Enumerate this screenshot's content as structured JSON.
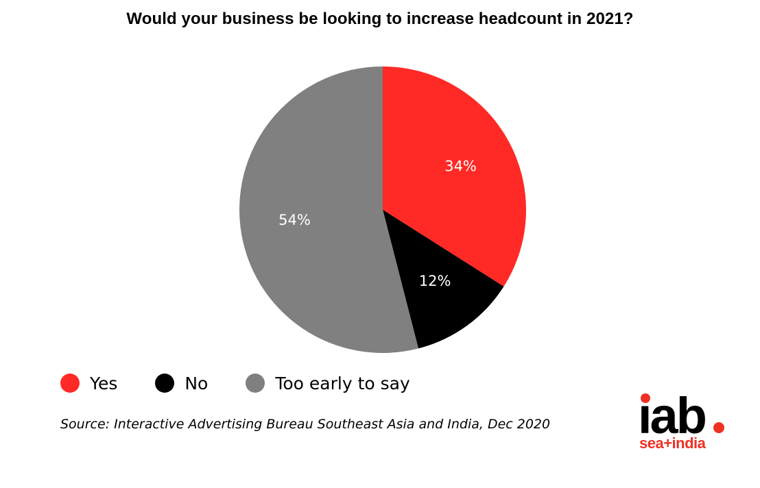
{
  "chart_data": {
    "type": "pie",
    "title": "Would your business be looking to increase headcount in 2021?",
    "categories": [
      "Yes",
      "No",
      "Too early to say"
    ],
    "values": [
      34,
      12,
      54
    ],
    "data_labels": [
      "34%",
      "12%",
      "54%"
    ],
    "colors": [
      "#ff2a26",
      "#000000",
      "#808080"
    ],
    "legend_position": "bottom-left"
  },
  "source": "Source: Interactive Advertising Bureau Southeast Asia and India, Dec 2020",
  "logo": {
    "main": "iab",
    "sub": "sea+india",
    "accent_color": "#ee3124"
  }
}
